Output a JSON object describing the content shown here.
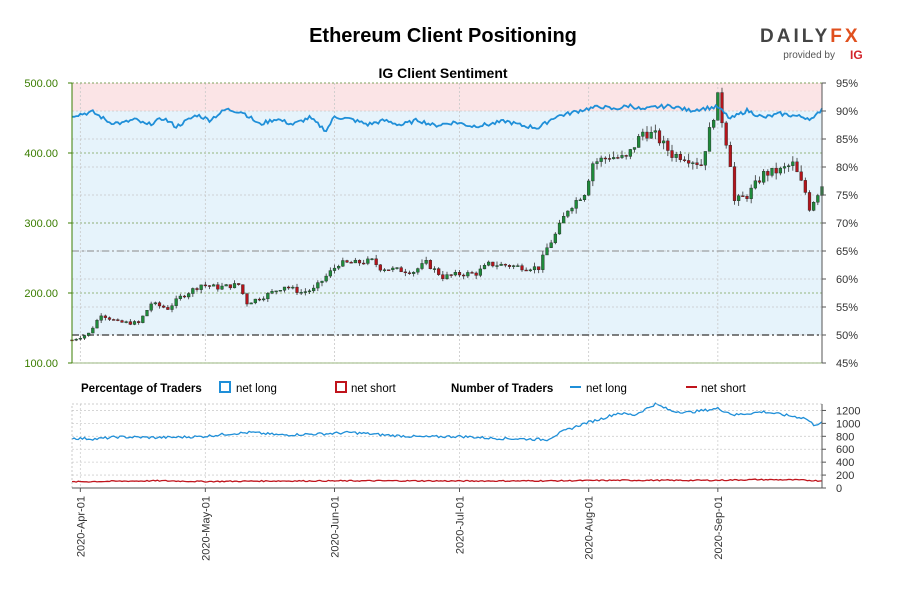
{
  "title": "Ethereum Client Positioning",
  "subtitle": "IG Client Sentiment",
  "logo": {
    "brand_a": "DAILY",
    "brand_b": "FX",
    "provided_by": "provided by",
    "ig": "IG"
  },
  "legend": {
    "pct_heading": "Percentage of Traders",
    "num_heading": "Number of Traders",
    "net_long": "net long",
    "net_short": "net short"
  },
  "colors": {
    "net_long": "#1f8fd8",
    "net_short": "#c0141c",
    "bull_candle": "#1e8a3a",
    "bear_candle": "#b3141b",
    "long_zone": "#e6f3fb",
    "short_zone": "#fbe4e6",
    "axis_green": "#3a7d00"
  },
  "chart_data": [
    {
      "type": "candlestick",
      "name": "price",
      "y_left_ticks": [
        "100.00",
        "200.00",
        "300.00",
        "400.00",
        "500.00"
      ],
      "y_left_range": [
        100,
        500
      ],
      "y_right_ticks": [
        "45%",
        "50%",
        "55%",
        "60%",
        "65%",
        "70%",
        "75%",
        "80%",
        "85%",
        "90%",
        "95%"
      ],
      "y_right_range": [
        45,
        95
      ],
      "x_ticks": [
        "2020-Apr-01",
        "2020-May-01",
        "2020-Jun-01",
        "2020-Jul-01",
        "2020-Aug-01",
        "2020-Sep-01"
      ],
      "x_range": [
        "2020-03-30",
        "2020-09-26"
      ],
      "reference_lines_pct": [
        50,
        65
      ],
      "close_anchors": [
        [
          "2020-03-30",
          133
        ],
        [
          "2020-04-03",
          142
        ],
        [
          "2020-04-06",
          170
        ],
        [
          "2020-04-10",
          158
        ],
        [
          "2020-04-15",
          157
        ],
        [
          "2020-04-18",
          185
        ],
        [
          "2020-04-22",
          178
        ],
        [
          "2020-04-25",
          194
        ],
        [
          "2020-04-30",
          212
        ],
        [
          "2020-05-04",
          208
        ],
        [
          "2020-05-09",
          212
        ],
        [
          "2020-05-11",
          186
        ],
        [
          "2020-05-15",
          195
        ],
        [
          "2020-05-20",
          210
        ],
        [
          "2020-05-24",
          201
        ],
        [
          "2020-05-27",
          205
        ],
        [
          "2020-05-31",
          230
        ],
        [
          "2020-06-02",
          242
        ],
        [
          "2020-06-06",
          243
        ],
        [
          "2020-06-10",
          246
        ],
        [
          "2020-06-12",
          236
        ],
        [
          "2020-06-16",
          233
        ],
        [
          "2020-06-20",
          231
        ],
        [
          "2020-06-23",
          243
        ],
        [
          "2020-06-27",
          223
        ],
        [
          "2020-07-01",
          227
        ],
        [
          "2020-07-05",
          228
        ],
        [
          "2020-07-08",
          241
        ],
        [
          "2020-07-12",
          240
        ],
        [
          "2020-07-16",
          237
        ],
        [
          "2020-07-20",
          236
        ],
        [
          "2020-07-22",
          264
        ],
        [
          "2020-07-24",
          283
        ],
        [
          "2020-07-27",
          320
        ],
        [
          "2020-07-31",
          344
        ],
        [
          "2020-08-02",
          386
        ],
        [
          "2020-08-06",
          395
        ],
        [
          "2020-08-10",
          392
        ],
        [
          "2020-08-14",
          430
        ],
        [
          "2020-08-17",
          425
        ],
        [
          "2020-08-21",
          398
        ],
        [
          "2020-08-24",
          395
        ],
        [
          "2020-08-28",
          384
        ],
        [
          "2020-09-01",
          478
        ],
        [
          "2020-09-04",
          386
        ],
        [
          "2020-09-05",
          331
        ],
        [
          "2020-09-08",
          339
        ],
        [
          "2020-09-12",
          370
        ],
        [
          "2020-09-16",
          375
        ],
        [
          "2020-09-19",
          384
        ],
        [
          "2020-09-22",
          344
        ],
        [
          "2020-09-23",
          322
        ],
        [
          "2020-09-26",
          354
        ]
      ],
      "net_long_pct_anchors": [
        [
          "2020-03-30",
          89.2
        ],
        [
          "2020-04-04",
          89.8
        ],
        [
          "2020-04-08",
          88.0
        ],
        [
          "2020-04-11",
          87.8
        ],
        [
          "2020-04-14",
          88.5
        ],
        [
          "2020-04-17",
          87.5
        ],
        [
          "2020-04-21",
          88.7
        ],
        [
          "2020-04-24",
          87.2
        ],
        [
          "2020-04-29",
          89.3
        ],
        [
          "2020-05-02",
          88.4
        ],
        [
          "2020-05-06",
          90.3
        ],
        [
          "2020-05-10",
          89.8
        ],
        [
          "2020-05-14",
          87.6
        ],
        [
          "2020-05-18",
          88.6
        ],
        [
          "2020-05-22",
          87.6
        ],
        [
          "2020-05-26",
          88.8
        ],
        [
          "2020-05-30",
          86.5
        ],
        [
          "2020-06-01",
          89.0
        ],
        [
          "2020-06-05",
          88.5
        ],
        [
          "2020-06-09",
          87.6
        ],
        [
          "2020-06-13",
          88.3
        ],
        [
          "2020-06-17",
          87.5
        ],
        [
          "2020-06-21",
          88.4
        ],
        [
          "2020-06-25",
          87.4
        ],
        [
          "2020-06-30",
          88.0
        ],
        [
          "2020-07-04",
          87.3
        ],
        [
          "2020-07-08",
          87.6
        ],
        [
          "2020-07-12",
          88.2
        ],
        [
          "2020-07-16",
          87.4
        ],
        [
          "2020-07-20",
          87.0
        ],
        [
          "2020-07-24",
          89.0
        ],
        [
          "2020-07-27",
          89.5
        ],
        [
          "2020-07-31",
          90.3
        ],
        [
          "2020-08-04",
          90.8
        ],
        [
          "2020-08-07",
          90.3
        ],
        [
          "2020-08-11",
          91.0
        ],
        [
          "2020-08-14",
          90.2
        ],
        [
          "2020-08-17",
          90.7
        ],
        [
          "2020-08-21",
          90.9
        ],
        [
          "2020-08-25",
          90.1
        ],
        [
          "2020-08-29",
          90.5
        ],
        [
          "2020-09-01",
          90.7
        ],
        [
          "2020-09-04",
          88.6
        ],
        [
          "2020-09-08",
          90.1
        ],
        [
          "2020-09-12",
          88.8
        ],
        [
          "2020-09-16",
          89.5
        ],
        [
          "2020-09-20",
          89.1
        ],
        [
          "2020-09-24",
          88.6
        ],
        [
          "2020-09-26",
          90.5
        ]
      ]
    },
    {
      "type": "line",
      "name": "number_of_traders",
      "y_ticks": [
        "0",
        "200",
        "400",
        "600",
        "800",
        "1000",
        "1200"
      ],
      "y_range": [
        0,
        1300
      ],
      "series": [
        {
          "name": "net long",
          "anchors": [
            [
              "2020-03-30",
              770
            ],
            [
              "2020-04-05",
              760
            ],
            [
              "2020-04-10",
              790
            ],
            [
              "2020-04-20",
              780
            ],
            [
              "2020-04-30",
              795
            ],
            [
              "2020-05-07",
              840
            ],
            [
              "2020-05-12",
              860
            ],
            [
              "2020-05-19",
              820
            ],
            [
              "2020-05-30",
              840
            ],
            [
              "2020-06-05",
              860
            ],
            [
              "2020-06-13",
              820
            ],
            [
              "2020-06-22",
              790
            ],
            [
              "2020-07-01",
              800
            ],
            [
              "2020-07-09",
              770
            ],
            [
              "2020-07-16",
              760
            ],
            [
              "2020-07-22",
              750
            ],
            [
              "2020-07-26",
              880
            ],
            [
              "2020-07-31",
              1000
            ],
            [
              "2020-08-04",
              1070
            ],
            [
              "2020-08-08",
              1160
            ],
            [
              "2020-08-12",
              1130
            ],
            [
              "2020-08-17",
              1300
            ],
            [
              "2020-08-21",
              1190
            ],
            [
              "2020-08-25",
              1170
            ],
            [
              "2020-09-01",
              1230
            ],
            [
              "2020-09-05",
              1130
            ],
            [
              "2020-09-12",
              1180
            ],
            [
              "2020-09-18",
              1120
            ],
            [
              "2020-09-22",
              1080
            ],
            [
              "2020-09-24",
              980
            ],
            [
              "2020-09-26",
              1010
            ]
          ]
        },
        {
          "name": "net short",
          "anchors": [
            [
              "2020-03-30",
              95
            ],
            [
              "2020-04-10",
              105
            ],
            [
              "2020-04-20",
              112
            ],
            [
              "2020-05-01",
              100
            ],
            [
              "2020-05-15",
              108
            ],
            [
              "2020-06-01",
              110
            ],
            [
              "2020-06-15",
              112
            ],
            [
              "2020-07-01",
              108
            ],
            [
              "2020-07-15",
              110
            ],
            [
              "2020-07-26",
              112
            ],
            [
              "2020-08-05",
              118
            ],
            [
              "2020-08-15",
              120
            ],
            [
              "2020-08-25",
              118
            ],
            [
              "2020-09-01",
              120
            ],
            [
              "2020-09-10",
              130
            ],
            [
              "2020-09-20",
              125
            ],
            [
              "2020-09-26",
              110
            ]
          ]
        }
      ]
    }
  ]
}
